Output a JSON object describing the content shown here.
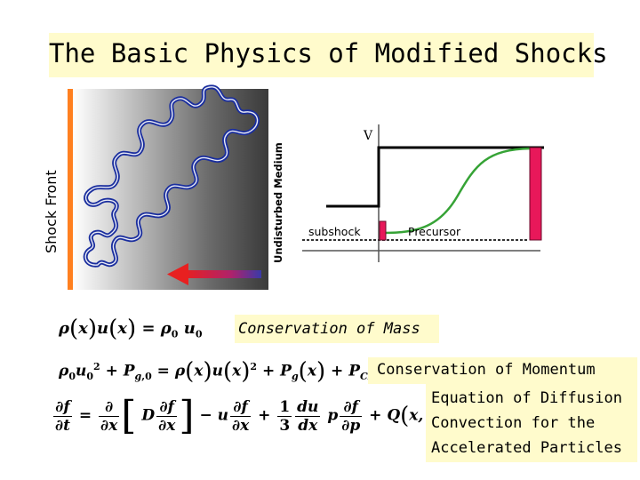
{
  "title": "The Basic Physics of Modified Shocks",
  "labels": {
    "shock_front": "Shock Front",
    "undisturbed_medium": "Undisturbed Medium",
    "velocity": "V",
    "subshock": "subshock",
    "precursor": "Precursor"
  },
  "conservation": {
    "mass": "Conservation of Mass",
    "momentum": "Conservation of Momentum",
    "diffusion_line1": "Equation of Diffusion",
    "diffusion_line2": "Convection for the",
    "diffusion_line3": "Accelerated Particles"
  },
  "colors": {
    "title_bg": "#fffbcc",
    "shock_front_bar": "#ff8020",
    "particle_path": "#1a2e9e",
    "precursor_bar": "#e8185a",
    "arrow": "#e82020",
    "velocity_curve": "#36a336"
  },
  "icons": {
    "arrow": "left-arrow-icon",
    "particle_path": "random-walk-path"
  }
}
